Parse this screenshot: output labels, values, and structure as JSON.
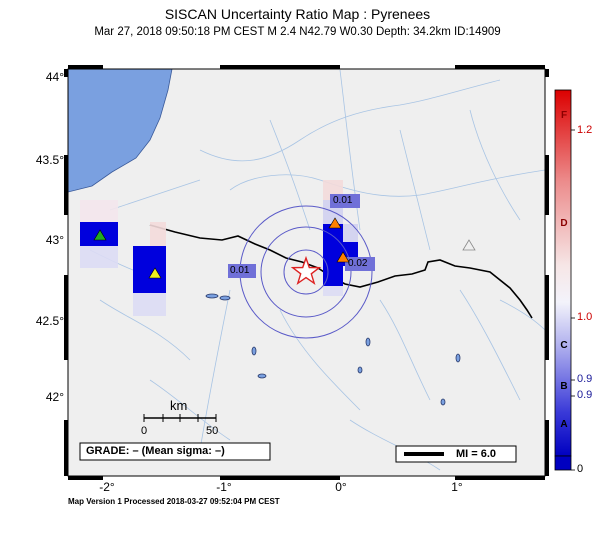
{
  "title": "SISCAN Uncertainty Ratio Map : Pyrenees",
  "subtitle": "Mar 27, 2018 09:50:18 PM CEST   M 2.4   N42.79 W0.30   Depth: 34.2km   ID:14909",
  "axes": {
    "lat_labels": [
      "44°",
      "43.5°",
      "43°",
      "42.5°",
      "42°"
    ],
    "lon_labels": [
      "-2°",
      "-1°",
      "0°",
      "1°"
    ]
  },
  "contours": [
    "0.01",
    "0.01",
    "0.02"
  ],
  "scale_bar": {
    "title": "km",
    "ticks": [
      "0",
      "50"
    ]
  },
  "grade_box": "GRADE: – (Mean sigma: –)",
  "mi_legend": "MI = 6.0",
  "footer": "Map Version 1 Processed 2018-03-27 09:52:04 PM CEST",
  "colorbar": {
    "value_labels": [
      "1.2",
      "1.0",
      "0.9",
      "0.9",
      "0"
    ],
    "grade_letters": [
      "F",
      "D",
      "C",
      "B",
      "A"
    ]
  },
  "colors": {
    "land": "#efefef",
    "ocean": "#7aa0e0",
    "station_cell": "#0000dd",
    "contour": "#5a5ac8",
    "epicenter": "#dd2222",
    "river": "#a8c4e4"
  },
  "icons": [
    "star-icon",
    "triangle-icon"
  ]
}
